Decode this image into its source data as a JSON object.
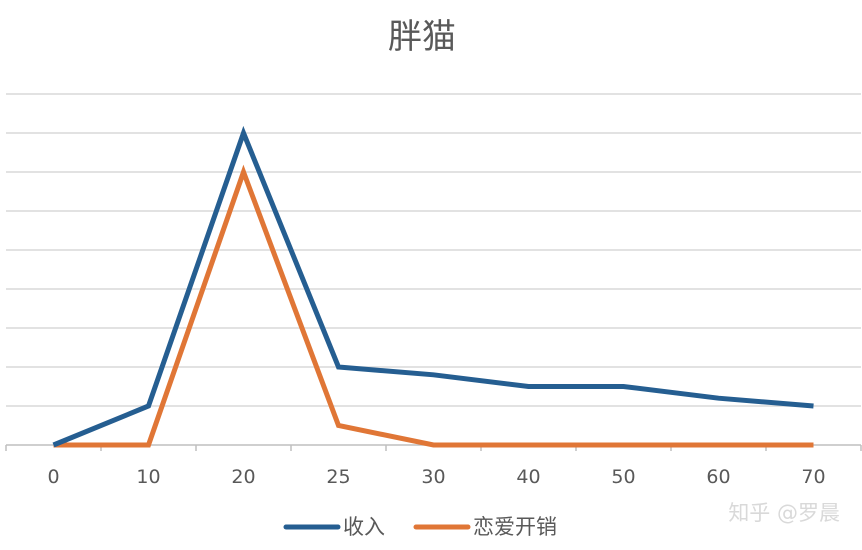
{
  "chart_data": {
    "type": "line",
    "title": "胖猫",
    "xlabel": "",
    "ylabel": "",
    "categories": [
      "0",
      "10",
      "20",
      "25",
      "30",
      "40",
      "50",
      "60",
      "70"
    ],
    "series": [
      {
        "name": "收入",
        "color": "#255e91",
        "values": [
          0,
          1,
          8,
          2,
          1.8,
          1.5,
          1.5,
          1.2,
          1.0
        ]
      },
      {
        "name": "恋爱开销",
        "color": "#e07636",
        "values": [
          0,
          0,
          7,
          0.5,
          0,
          0,
          0,
          0,
          0
        ]
      }
    ],
    "ylim": [
      0,
      9
    ],
    "gridlines": 9,
    "grid": true,
    "legend": "bottom"
  },
  "watermark": "知乎 @罗晨"
}
